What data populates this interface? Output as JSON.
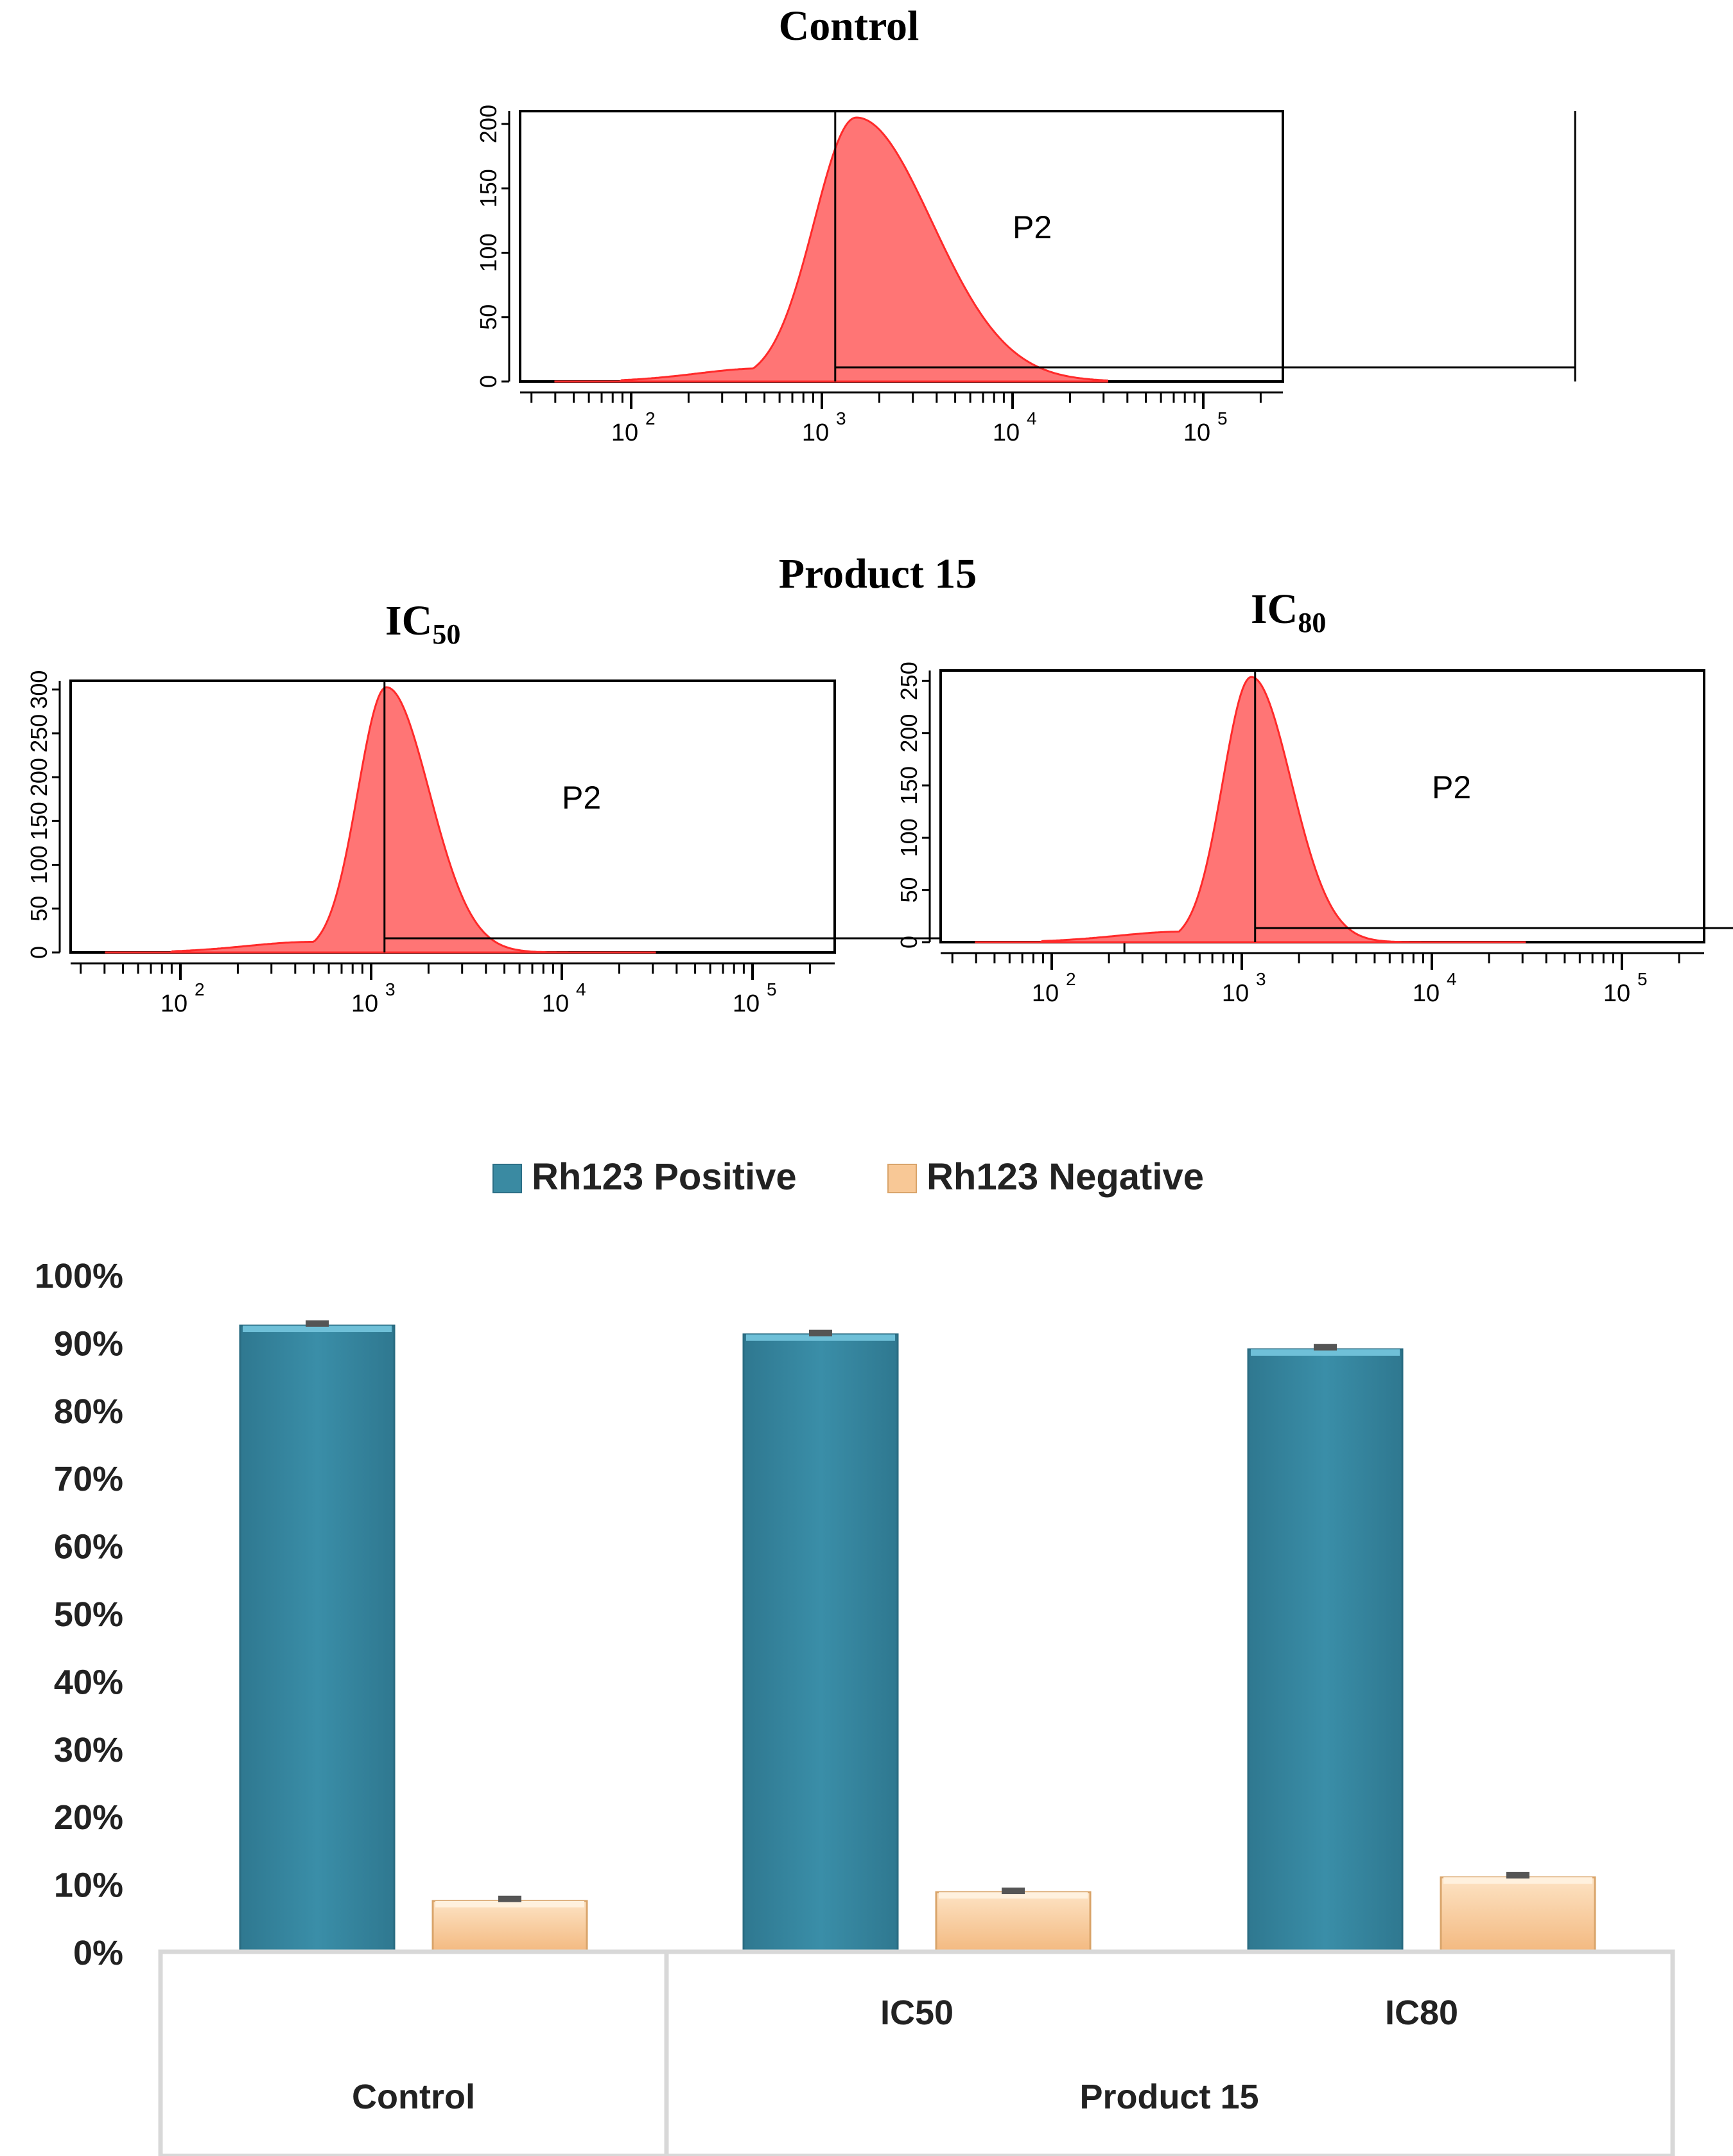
{
  "flow": {
    "control_title": "Control",
    "group_title": "Product 15",
    "ic50_title": {
      "base": "IC",
      "sub": "50"
    },
    "ic80_title": {
      "base": "IC",
      "sub": "80"
    },
    "gate_label": "P2",
    "x_ticks": [
      "2",
      "3",
      "4",
      "5"
    ],
    "x_tick_base": "10",
    "panels": [
      {
        "id": "control",
        "y_ticks": [
          0,
          50,
          100,
          150,
          200
        ],
        "y_max": 210,
        "gate_x": [
          1.07,
          4.95
        ]
      },
      {
        "id": "ic50",
        "y_ticks": [
          0,
          50,
          100,
          150,
          200,
          250,
          300
        ],
        "y_max": 310,
        "gate_x": [
          1.07,
          4.95
        ]
      },
      {
        "id": "ic80",
        "y_ticks": [
          0,
          50,
          100,
          150,
          200,
          250
        ],
        "y_max": 260,
        "gate_x": [
          1.07,
          4.95
        ]
      }
    ]
  },
  "chart_data": {
    "type": "bar",
    "categories": [
      "Control",
      "IC50",
      "IC80"
    ],
    "category_groups": [
      {
        "label": "Control",
        "categories": [
          "Control"
        ]
      },
      {
        "label": "Product 15",
        "categories": [
          "IC50",
          "IC80"
        ]
      }
    ],
    "series": [
      {
        "name": "Rh123 Positive",
        "values": [
          92.5,
          91.2,
          89.0
        ],
        "error": [
          0.4,
          0.3,
          0.4
        ],
        "color": "#3a8aa2"
      },
      {
        "name": "Rh123 Negative",
        "values": [
          7.5,
          8.8,
          11.0
        ],
        "error": [
          0.4,
          0.3,
          0.4
        ],
        "color": "#f8c896"
      }
    ],
    "y_ticks": [
      "0%",
      "10%",
      "20%",
      "30%",
      "40%",
      "50%",
      "60%",
      "70%",
      "80%",
      "90%",
      "100%"
    ],
    "ylim": [
      0,
      100
    ],
    "legend_position": "top"
  }
}
